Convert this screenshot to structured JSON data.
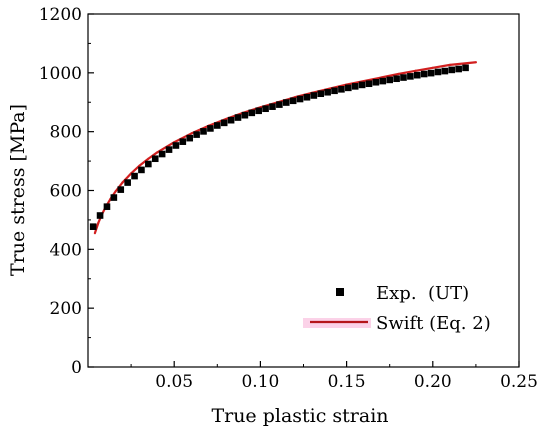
{
  "chart_data": {
    "type": "scatter",
    "title": "",
    "xlabel": "True plastic strain",
    "ylabel": "True stress [MPa]",
    "xlim": [
      0,
      0.25
    ],
    "ylim": [
      0,
      1200
    ],
    "xticks": [
      0.05,
      0.1,
      0.15,
      0.2,
      0.25
    ],
    "xtick_labels": [
      "0.05",
      "0.10",
      "0.15",
      "0.20",
      "0.25"
    ],
    "yticks": [
      0,
      200,
      400,
      600,
      800,
      1000,
      1200
    ],
    "ytick_labels": [
      "0",
      "200",
      "400",
      "600",
      "800",
      "1000",
      "1200"
    ],
    "grid": false,
    "legend_position": "bottom-right",
    "series": [
      {
        "name": "Exp.  (UT)",
        "kind": "scatter",
        "color": "#000000",
        "marker": "square",
        "x": [
          0.003,
          0.007,
          0.011,
          0.015,
          0.019,
          0.023,
          0.027,
          0.031,
          0.035,
          0.039,
          0.043,
          0.047,
          0.051,
          0.055,
          0.059,
          0.063,
          0.067,
          0.071,
          0.075,
          0.079,
          0.083,
          0.087,
          0.091,
          0.095,
          0.099,
          0.103,
          0.107,
          0.111,
          0.115,
          0.119,
          0.123,
          0.127,
          0.131,
          0.135,
          0.139,
          0.143,
          0.147,
          0.151,
          0.155,
          0.159,
          0.163,
          0.167,
          0.171,
          0.175,
          0.179,
          0.183,
          0.187,
          0.191,
          0.195,
          0.199,
          0.203,
          0.207,
          0.211,
          0.215,
          0.219
        ],
        "y": [
          477,
          515,
          545,
          576,
          603,
          627,
          649,
          670,
          690,
          708,
          724,
          739,
          753,
          766,
          778,
          790,
          801,
          811,
          821,
          830,
          839,
          848,
          856,
          864,
          871,
          878,
          885,
          892,
          899,
          905,
          911,
          917,
          923,
          929,
          934,
          939,
          944,
          949,
          954,
          959,
          963,
          968,
          972,
          976,
          980,
          984,
          988,
          992,
          996,
          999,
          1003,
          1006,
          1010,
          1013,
          1017
        ]
      },
      {
        "name": "Swift (Eq. 2)",
        "kind": "line",
        "color": "#d21f1f",
        "x": [
          0.004,
          0.006,
          0.008,
          0.01,
          0.013,
          0.016,
          0.02,
          0.025,
          0.03,
          0.035,
          0.04,
          0.05,
          0.06,
          0.07,
          0.08,
          0.09,
          0.1,
          0.11,
          0.12,
          0.13,
          0.14,
          0.15,
          0.16,
          0.17,
          0.18,
          0.19,
          0.2,
          0.21,
          0.225
        ],
        "y": [
          455,
          490,
          518,
          541,
          571,
          597,
          627,
          658,
          685,
          708,
          729,
          764,
          794,
          820,
          843,
          864,
          883,
          900,
          917,
          932,
          946,
          960,
          972,
          984,
          996,
          1007,
          1017,
          1027,
          1036
        ]
      }
    ]
  }
}
